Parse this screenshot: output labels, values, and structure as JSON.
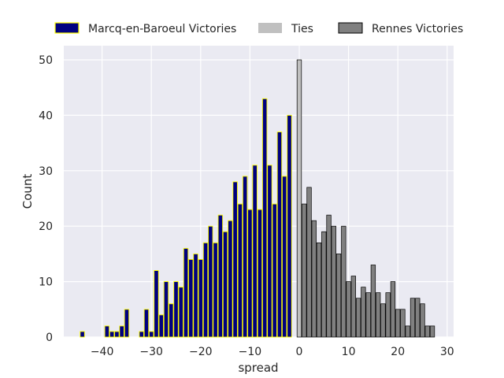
{
  "chart_data": {
    "type": "bar",
    "title": "",
    "xlabel": "spread",
    "ylabel": "Count",
    "xlim": [
      -48,
      31
    ],
    "ylim": [
      0,
      52
    ],
    "xticks": [
      -40,
      -30,
      -20,
      -10,
      0,
      10,
      20,
      30
    ],
    "yticks": [
      0,
      10,
      20,
      30,
      40,
      50
    ],
    "grid": true,
    "legend_position": "top-outside",
    "series": [
      {
        "name": "Marcq-en-Baroeul Victories",
        "color": "#000080",
        "edge_color": "#ffff00",
        "x": [
          -44,
          -39,
          -38,
          -37,
          -36,
          -35,
          -32,
          -31,
          -30,
          -29,
          -28,
          -27,
          -26,
          -25,
          -24,
          -23,
          -22,
          -21,
          -20,
          -19,
          -18,
          -17,
          -16,
          -15,
          -14,
          -13,
          -12,
          -11,
          -10,
          -9,
          -8,
          -7,
          -6,
          -5,
          -4,
          -3,
          -2,
          -1
        ],
        "values": [
          1,
          2,
          1,
          1,
          2,
          5,
          1,
          5,
          1,
          12,
          4,
          10,
          6,
          10,
          9,
          16,
          14,
          15,
          14,
          17,
          20,
          17,
          22,
          19,
          21,
          28,
          24,
          29,
          23,
          31,
          23,
          43,
          31,
          24,
          37,
          29,
          40,
          0
        ]
      },
      {
        "name": "Ties",
        "color": "#c0c0c0",
        "edge_color": "#000000",
        "x": [
          0
        ],
        "values": [
          50
        ]
      },
      {
        "name": "Rennes Victories",
        "color": "#808080",
        "edge_color": "#000000",
        "x": [
          1,
          2,
          3,
          4,
          5,
          6,
          7,
          8,
          9,
          10,
          11,
          12,
          13,
          14,
          15,
          16,
          17,
          18,
          19,
          20,
          21,
          22,
          23,
          24,
          25,
          26,
          27
        ],
        "values": [
          24,
          27,
          21,
          17,
          19,
          22,
          20,
          15,
          20,
          10,
          11,
          7,
          9,
          8,
          13,
          8,
          6,
          8,
          10,
          5,
          5,
          2,
          7,
          7,
          6,
          2,
          2
        ]
      }
    ]
  }
}
